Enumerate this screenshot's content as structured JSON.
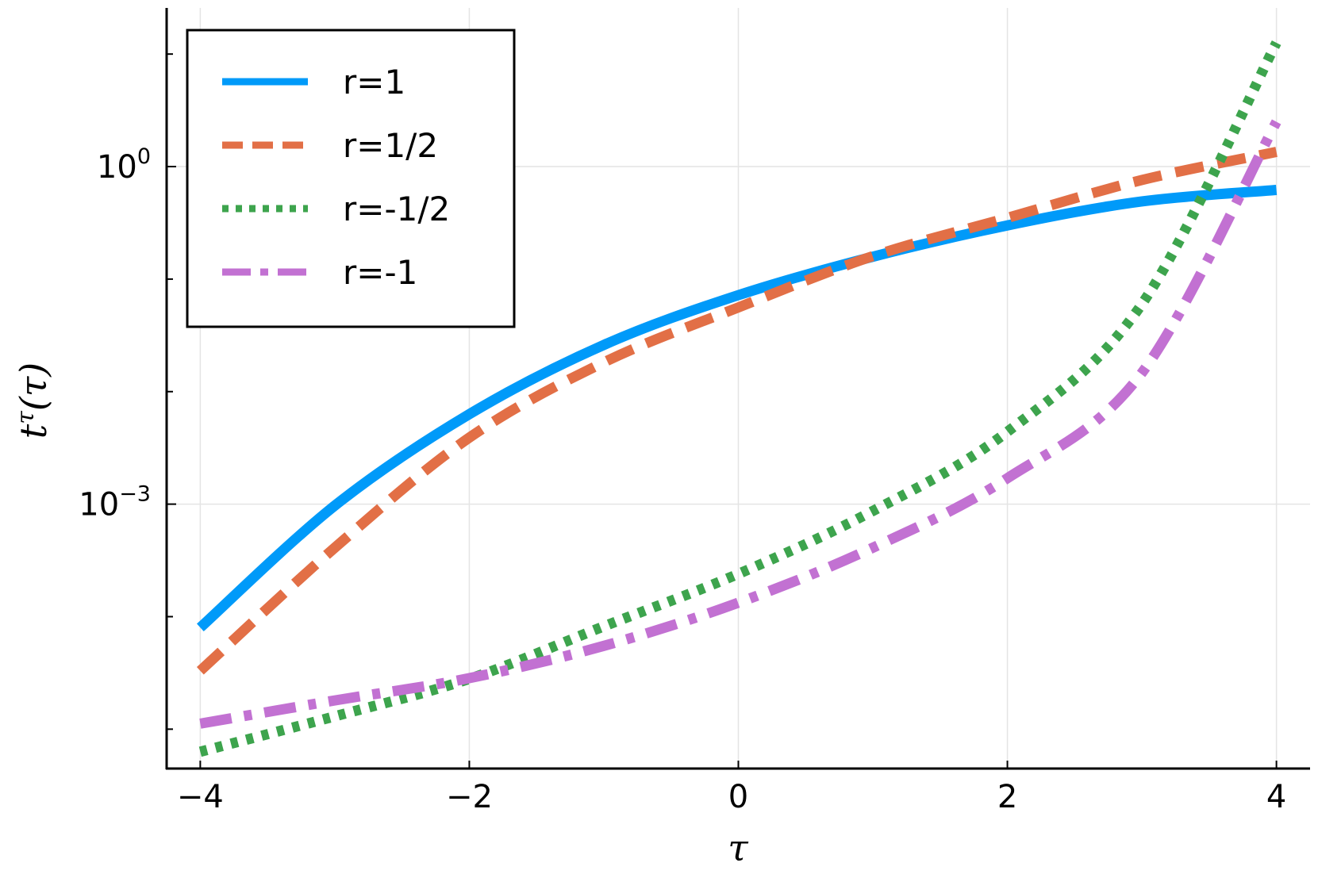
{
  "chart_data": {
    "type": "line",
    "xlabel": "τ",
    "ylabel_base": "t",
    "ylabel_sup": "τ",
    "ylabel_tail": "(τ)",
    "xlim": [
      -4.25,
      4.25
    ],
    "xticks": [
      {
        "value": -4,
        "label": "−4"
      },
      {
        "value": -2,
        "label": "−2"
      },
      {
        "value": 0,
        "label": "0"
      },
      {
        "value": 2,
        "label": "2"
      },
      {
        "value": 4,
        "label": "4"
      }
    ],
    "yscale": "log",
    "ylim_log10": [
      -5.35,
      1.41
    ],
    "yticks": [
      {
        "log10": 0,
        "base": "10",
        "exp": "0"
      },
      {
        "log10": -3,
        "base": "10",
        "exp": "−3"
      }
    ],
    "yminor_log10": [
      -5,
      -4,
      -2,
      -1,
      1
    ],
    "grid": true,
    "legend_position": "top-left",
    "series": [
      {
        "name": "r=1",
        "color": "#009af9",
        "style": "solid",
        "x": [
          -4,
          -3,
          -2,
          -1,
          0,
          1,
          2,
          3,
          4
        ],
        "y": [
          8e-05,
          0.00097,
          0.0063,
          0.026,
          0.072,
          0.158,
          0.3,
          0.49,
          0.62
        ]
      },
      {
        "name": "r=1/2",
        "color": "#e26f46",
        "style": "dashed",
        "x": [
          -4,
          -3,
          -2,
          -1,
          0,
          1,
          2,
          3,
          4
        ],
        "y": [
          3.3e-05,
          0.00041,
          0.0039,
          0.0182,
          0.056,
          0.16,
          0.35,
          0.76,
          1.35
        ]
      },
      {
        "name": "r=-1/2",
        "color": "#3da44d",
        "style": "dotted",
        "x": [
          -4,
          -3,
          -2,
          -1,
          0,
          1,
          2,
          3,
          4
        ],
        "y": [
          6.3e-06,
          1.3e-05,
          2.8e-05,
          8.2e-05,
          0.00024,
          0.00087,
          0.0044,
          0.06,
          12.6
        ]
      },
      {
        "name": "r=-1",
        "color": "#c271d2",
        "style": "dashdot",
        "x": [
          -4,
          -3,
          -2,
          -1,
          0,
          1,
          2,
          3,
          4
        ],
        "y": [
          1.12e-05,
          1.8e-05,
          2.84e-05,
          5.5e-05,
          0.000133,
          0.00041,
          0.0017,
          0.0147,
          2.5
        ]
      }
    ]
  }
}
